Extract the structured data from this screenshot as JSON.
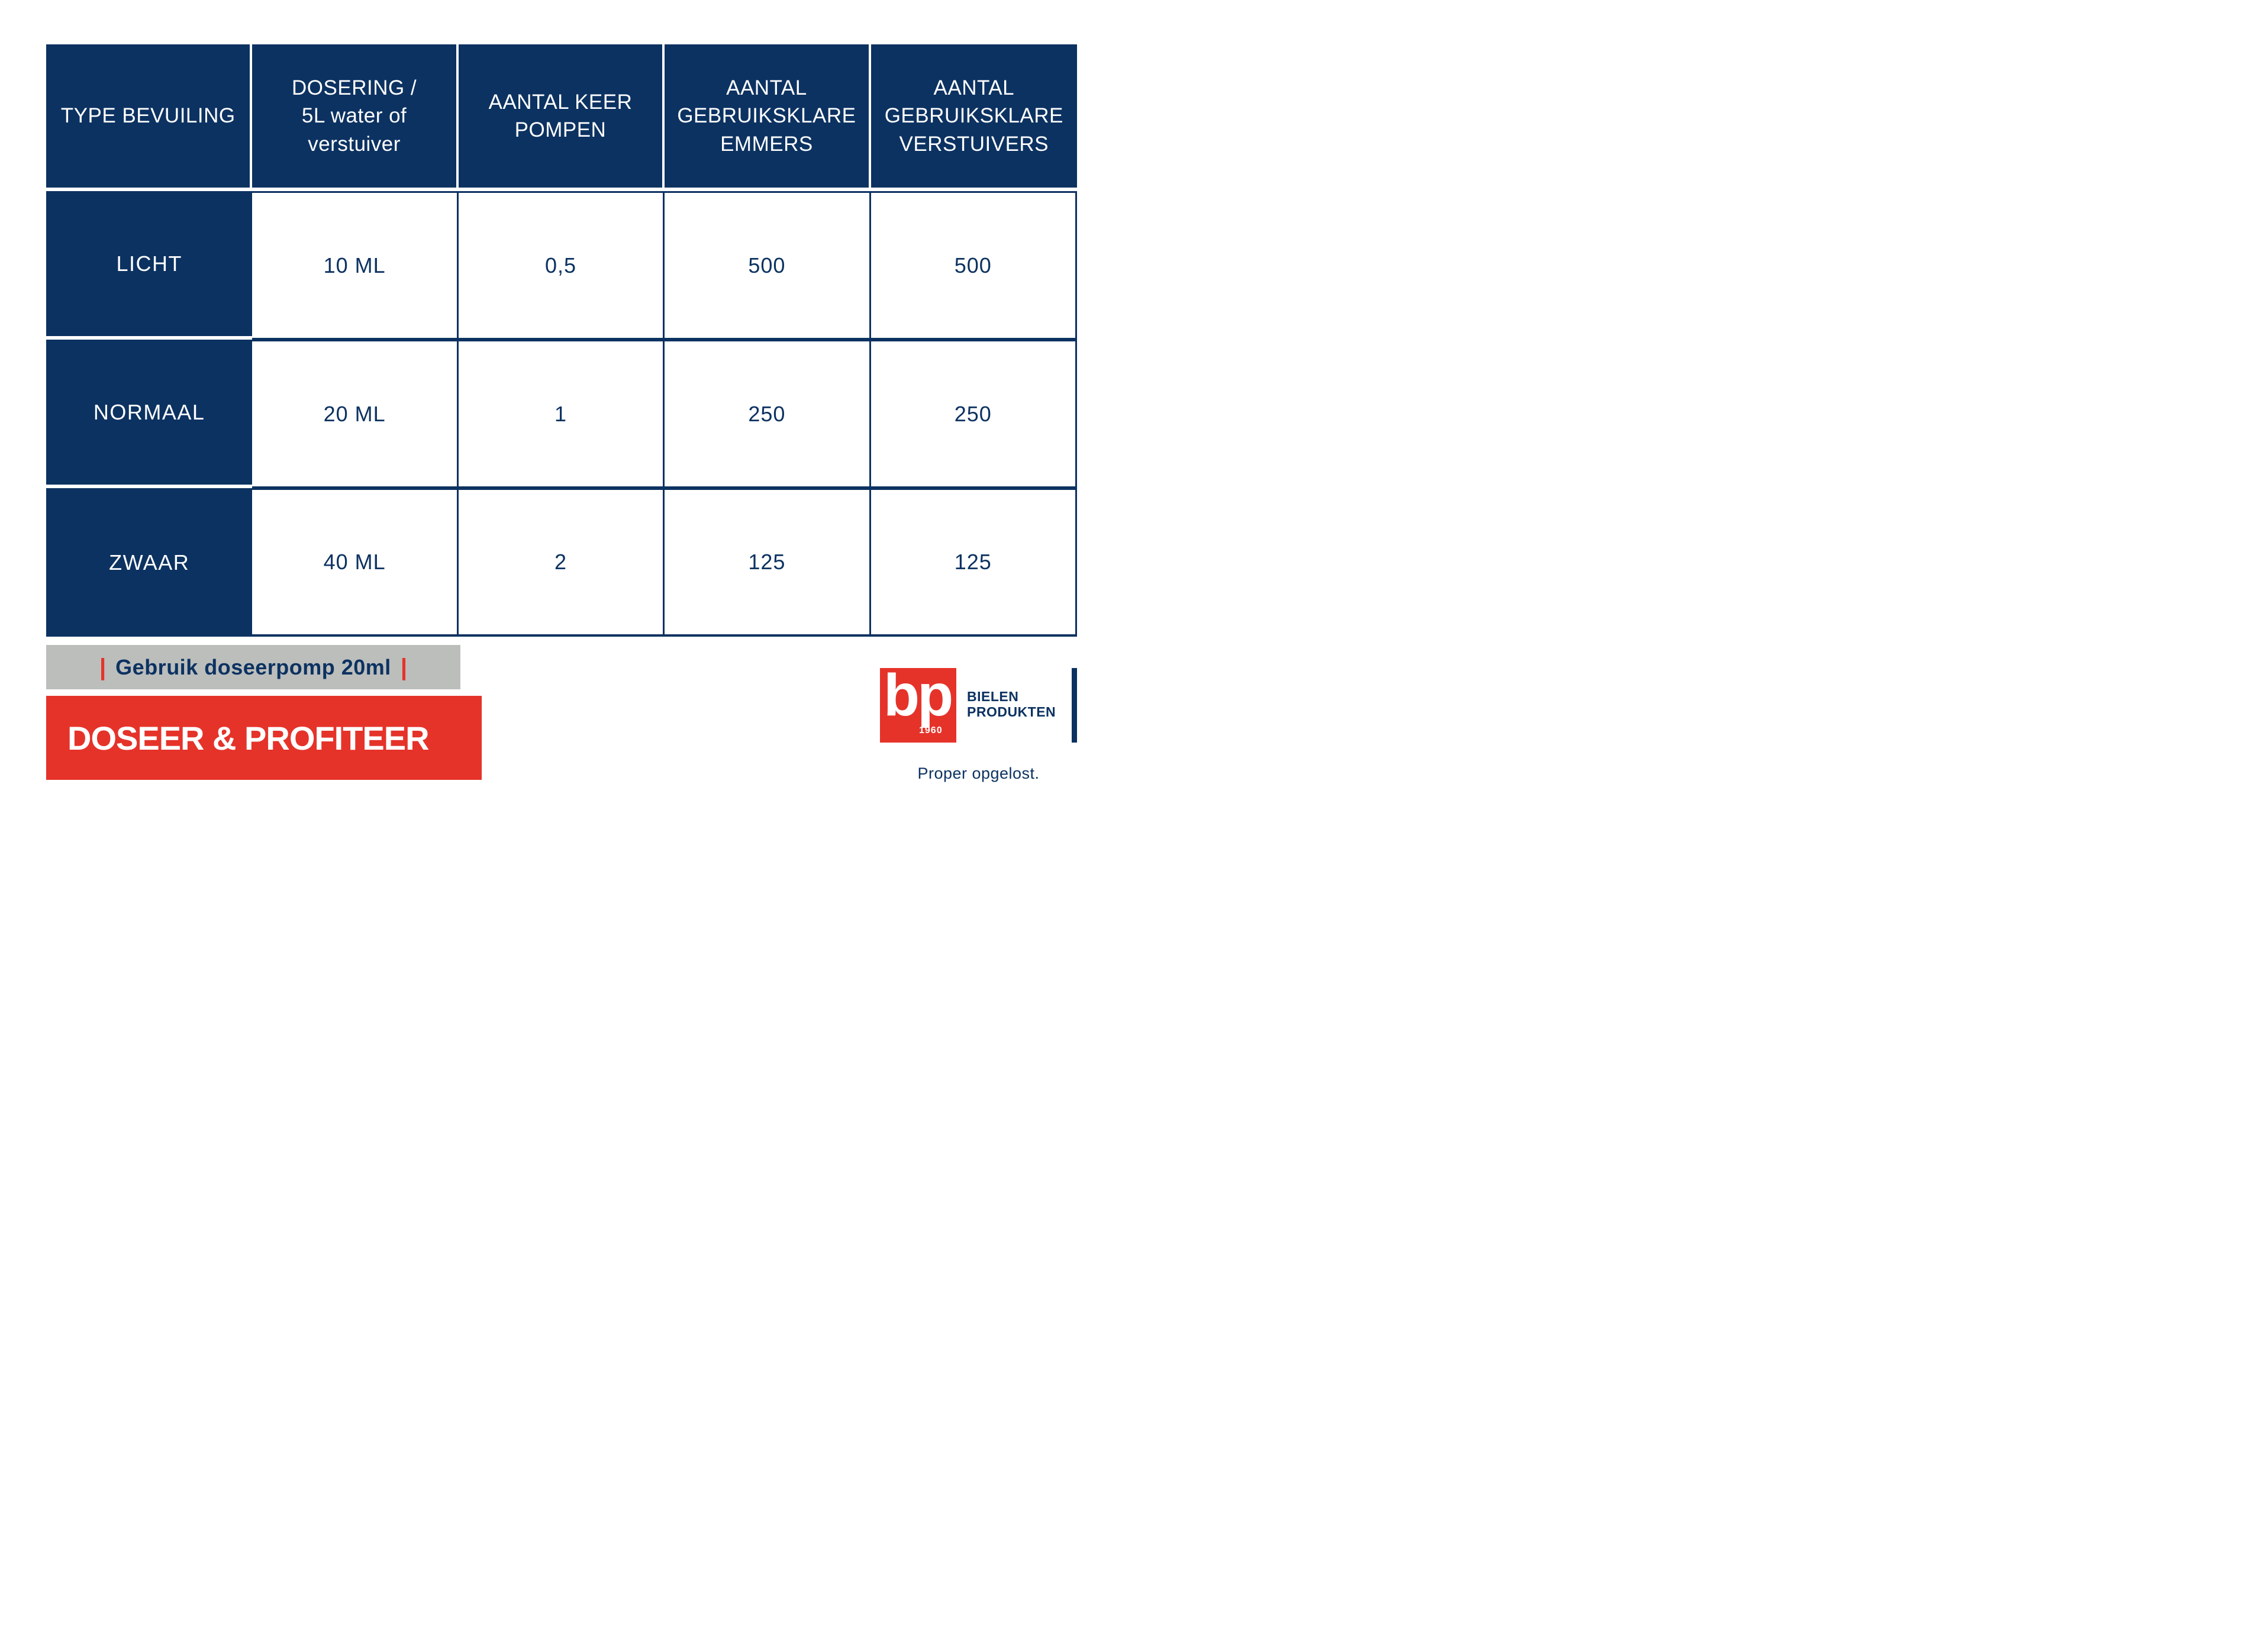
{
  "table": {
    "headers": [
      {
        "lines": [
          "TYPE BEVUILING",
          "",
          ""
        ]
      },
      {
        "lines": [
          "DOSERING /",
          "5L water of",
          "verstuiver"
        ]
      },
      {
        "lines": [
          "AANTAL KEER",
          "POMPEN",
          ""
        ]
      },
      {
        "lines": [
          "AANTAL",
          "GEBRUIKSKLARE",
          "EMMERS"
        ]
      },
      {
        "lines": [
          "AANTAL",
          "GEBRUIKSKLARE",
          "VERSTUIVERS"
        ]
      }
    ],
    "rows": [
      {
        "type": "LICHT",
        "dosering": "10 ML",
        "pompen": "0,5",
        "emmers": "500",
        "verstuivers": "500"
      },
      {
        "type": "NORMAAL",
        "dosering": "20 ML",
        "pompen": "1",
        "emmers": "250",
        "verstuivers": "250"
      },
      {
        "type": "ZWAAR",
        "dosering": "40 ML",
        "pompen": "2",
        "emmers": "125",
        "verstuivers": "125"
      }
    ]
  },
  "footer": {
    "pipe": "|",
    "pump_note": "Gebruik doseerpomp 20ml",
    "slogan": "DOSEER & PROFITEER"
  },
  "logo": {
    "monogram": "bp",
    "year": "1960",
    "company_line1": "BIELEN",
    "company_line2": "PRODUKTEN",
    "tagline": "Proper opgelost."
  },
  "colors": {
    "navy": "#0c3261",
    "red": "#e5332a",
    "gray": "#bcbebc",
    "white": "#ffffff"
  }
}
